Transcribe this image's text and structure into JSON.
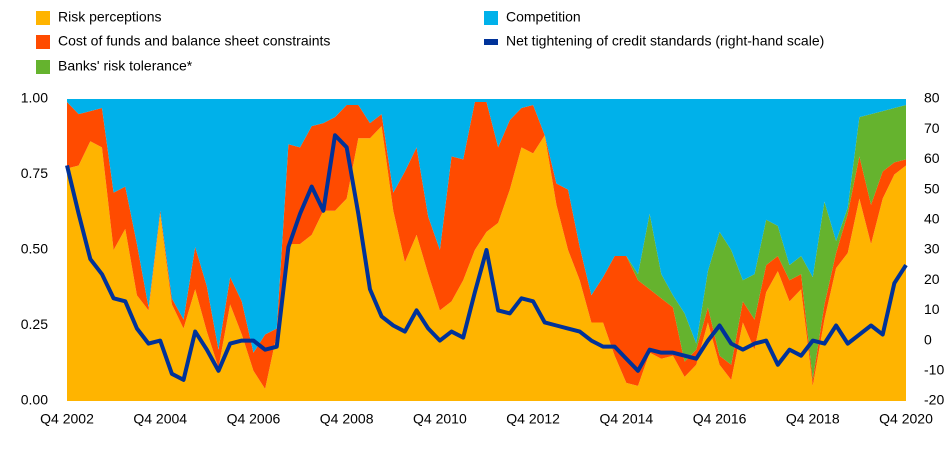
{
  "chart_data": {
    "type": "stacked-area",
    "categories": [
      "Q4 2002",
      null,
      null,
      null,
      null,
      null,
      null,
      null,
      "Q4 2004",
      null,
      null,
      null,
      null,
      null,
      null,
      null,
      "Q4 2006",
      null,
      null,
      null,
      null,
      null,
      null,
      null,
      "Q4 2008",
      null,
      null,
      null,
      null,
      null,
      null,
      null,
      "Q4 2010",
      null,
      null,
      null,
      null,
      null,
      null,
      null,
      "Q4 2012",
      null,
      null,
      null,
      null,
      null,
      null,
      null,
      "Q4 2014",
      null,
      null,
      null,
      null,
      null,
      null,
      null,
      "Q4 2016",
      null,
      null,
      null,
      null,
      null,
      null,
      null,
      "Q4 2018",
      null,
      null,
      null,
      null,
      null,
      null,
      null,
      "Q4 2020"
    ],
    "series": [
      {
        "name": "Risk perceptions",
        "color": "#FFB400",
        "values": [
          0.77,
          0.78,
          0.86,
          0.84,
          0.5,
          0.57,
          0.35,
          0.3,
          0.62,
          0.32,
          0.24,
          0.37,
          0.23,
          0.11,
          0.32,
          0.22,
          0.1,
          0.04,
          0.22,
          0.52,
          0.52,
          0.55,
          0.63,
          0.63,
          0.67,
          0.87,
          0.87,
          0.91,
          0.63,
          0.46,
          0.55,
          0.42,
          0.3,
          0.33,
          0.4,
          0.5,
          0.56,
          0.59,
          0.7,
          0.84,
          0.82,
          0.88,
          0.65,
          0.5,
          0.4,
          0.26,
          0.26,
          0.15,
          0.06,
          0.05,
          0.16,
          0.14,
          0.15,
          0.08,
          0.12,
          0.26,
          0.12,
          0.07,
          0.26,
          0.17,
          0.36,
          0.43,
          0.33,
          0.37,
          0.05,
          0.27,
          0.44,
          0.49,
          0.67,
          0.52,
          0.67,
          0.75,
          0.78
        ]
      },
      {
        "name": "Cost of funds and balance sheet constraints",
        "color": "#FF4B00",
        "values": [
          0.22,
          0.17,
          0.1,
          0.13,
          0.19,
          0.14,
          0.17,
          0.01,
          0.01,
          0.02,
          0.03,
          0.14,
          0.15,
          0.06,
          0.09,
          0.11,
          0.06,
          0.18,
          0.02,
          0.33,
          0.32,
          0.36,
          0.29,
          0.31,
          0.31,
          0.11,
          0.05,
          0.04,
          0.06,
          0.3,
          0.29,
          0.19,
          0.2,
          0.48,
          0.4,
          0.49,
          0.43,
          0.25,
          0.23,
          0.13,
          0.16,
          0.0,
          0.07,
          0.2,
          0.11,
          0.09,
          0.15,
          0.33,
          0.42,
          0.35,
          0.21,
          0.2,
          0.16,
          0.05,
          0.05,
          0.05,
          0.03,
          0.05,
          0.07,
          0.1,
          0.09,
          0.05,
          0.07,
          0.05,
          0.02,
          0.05,
          0.05,
          0.13,
          0.14,
          0.13,
          0.09,
          0.04,
          0.02
        ]
      },
      {
        "name": "Banks' risk tolerance*",
        "color": "#65B32E",
        "values": [
          0,
          0,
          0,
          0,
          0,
          0,
          0,
          0,
          0,
          0,
          0,
          0,
          0,
          0,
          0,
          0,
          0,
          0,
          0,
          0,
          0,
          0,
          0,
          0,
          0,
          0,
          0,
          0,
          0,
          0,
          0,
          0,
          0,
          0,
          0,
          0,
          0,
          0,
          0,
          0,
          0,
          0,
          0,
          0,
          0,
          0,
          0,
          0,
          0.0,
          0.02,
          0.25,
          0.08,
          0.04,
          0.16,
          0.02,
          0.12,
          0.41,
          0.38,
          0.07,
          0.15,
          0.15,
          0.1,
          0.05,
          0.06,
          0.34,
          0.34,
          0.04,
          0.02,
          0.13,
          0.3,
          0.2,
          0.18,
          0.18
        ]
      },
      {
        "name": "Competition",
        "color": "#00B1EA",
        "values": [
          0.01,
          0.05,
          0.04,
          0.03,
          0.31,
          0.29,
          0.48,
          0.69,
          0.37,
          0.66,
          0.73,
          0.49,
          0.62,
          0.83,
          0.59,
          0.67,
          0.84,
          0.78,
          0.76,
          0.15,
          0.16,
          0.09,
          0.08,
          0.06,
          0.02,
          0.02,
          0.08,
          0.05,
          0.31,
          0.24,
          0.16,
          0.39,
          0.5,
          0.19,
          0.2,
          0.01,
          0.01,
          0.16,
          0.07,
          0.03,
          0.02,
          0.12,
          0.28,
          0.3,
          0.49,
          0.65,
          0.59,
          0.52,
          0.52,
          0.58,
          0.38,
          0.58,
          0.65,
          0.71,
          0.81,
          0.57,
          0.44,
          0.5,
          0.6,
          0.58,
          0.4,
          0.42,
          0.55,
          0.52,
          0.59,
          0.34,
          0.47,
          0.36,
          0.06,
          0.05,
          0.04,
          0.03,
          0.02
        ]
      },
      {
        "name": "Net tightening of credit standards (right-hand scale)",
        "color": "#003299",
        "type": "line",
        "axis": "y2",
        "values": [
          58,
          42,
          27,
          22,
          14,
          13,
          4,
          -1,
          0,
          -11,
          -13,
          3,
          -3,
          -10,
          -1,
          0,
          0,
          -3,
          -2,
          31,
          42,
          51,
          43,
          68,
          64,
          42,
          17,
          8,
          5,
          3,
          10,
          4,
          0,
          3,
          1,
          16,
          30,
          10,
          9,
          14,
          13,
          6,
          5,
          4,
          3,
          0,
          -2,
          -2,
          -6,
          -10,
          -3,
          -4,
          -4,
          -5,
          -6,
          0,
          5,
          -1,
          -3,
          -1,
          0,
          -8,
          -3,
          -5,
          0,
          -1,
          5,
          -1,
          2,
          5,
          2,
          19,
          25
        ]
      }
    ],
    "ylim": [
      0,
      1
    ],
    "yticks": [
      {
        "value": 0,
        "label": "0.00"
      },
      {
        "value": 0.25,
        "label": "0.25"
      },
      {
        "value": 0.5,
        "label": "0.50"
      },
      {
        "value": 0.75,
        "label": "0.75"
      },
      {
        "value": 1,
        "label": "1.00"
      }
    ],
    "y2lim": [
      -20,
      80
    ],
    "y2ticks": [
      -20,
      -10,
      0,
      10,
      20,
      30,
      40,
      50,
      60,
      70,
      80
    ]
  }
}
